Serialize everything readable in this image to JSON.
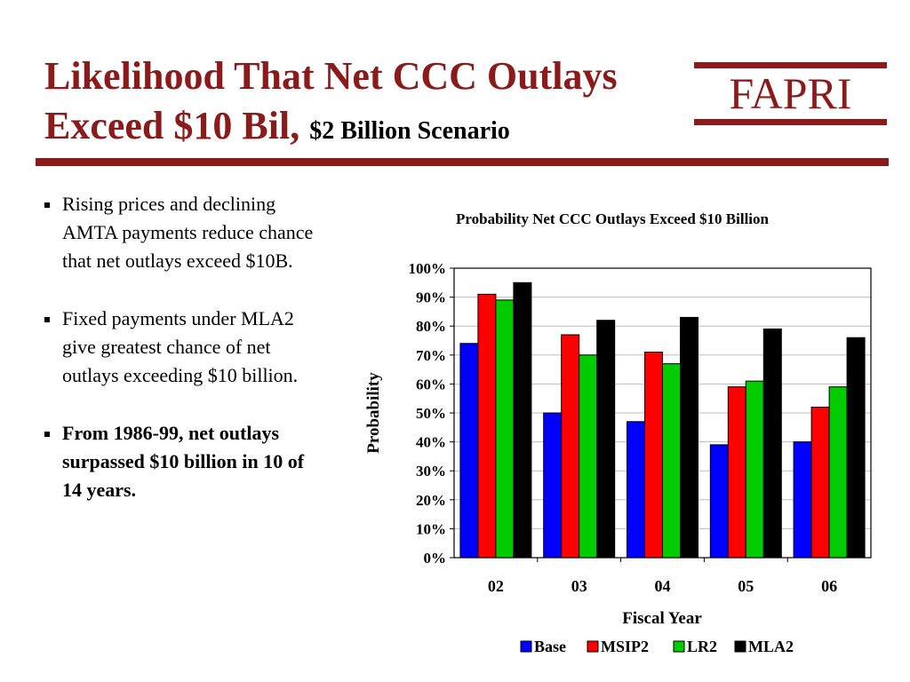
{
  "slide": {
    "title_line1": "Likelihood That Net CCC Outlays",
    "title_line2": "Exceed $10 Bil,",
    "title_sub": "$2 Billion Scenario",
    "logo_text": "FAPRI",
    "accent_color": "#8b1a1a"
  },
  "bullets": [
    {
      "text": "Rising prices and declining AMTA payments reduce chance that net outlays exceed $10B."
    },
    {
      "text": "Fixed payments under MLA2 give greatest chance of net outlays exceeding $10 billion."
    },
    {
      "text": "From 1986-99, net outlays surpassed $10 billion in 10 of 14 years."
    }
  ],
  "chart_data": {
    "type": "bar",
    "title": "Probability Net CCC Outlays Exceed $10 Billion",
    "xlabel": "Fiscal Year",
    "ylabel": "Probability",
    "categories": [
      "02",
      "03",
      "04",
      "05",
      "06"
    ],
    "ylim": [
      0,
      100
    ],
    "ytick_labels": [
      "0%",
      "10%",
      "20%",
      "30%",
      "40%",
      "50%",
      "60%",
      "70%",
      "80%",
      "90%",
      "100%"
    ],
    "grid": true,
    "legend_position": "bottom",
    "series": [
      {
        "name": "Base",
        "color": "#0000ff",
        "values": [
          74,
          50,
          47,
          39,
          40
        ]
      },
      {
        "name": "MSIP2",
        "color": "#ff0000",
        "values": [
          91,
          77,
          71,
          59,
          52
        ]
      },
      {
        "name": "LR2",
        "color": "#00cc00",
        "values": [
          89,
          70,
          67,
          61,
          59
        ]
      },
      {
        "name": "MLA2",
        "color": "#000000",
        "values": [
          95,
          82,
          83,
          79,
          76
        ]
      }
    ]
  }
}
